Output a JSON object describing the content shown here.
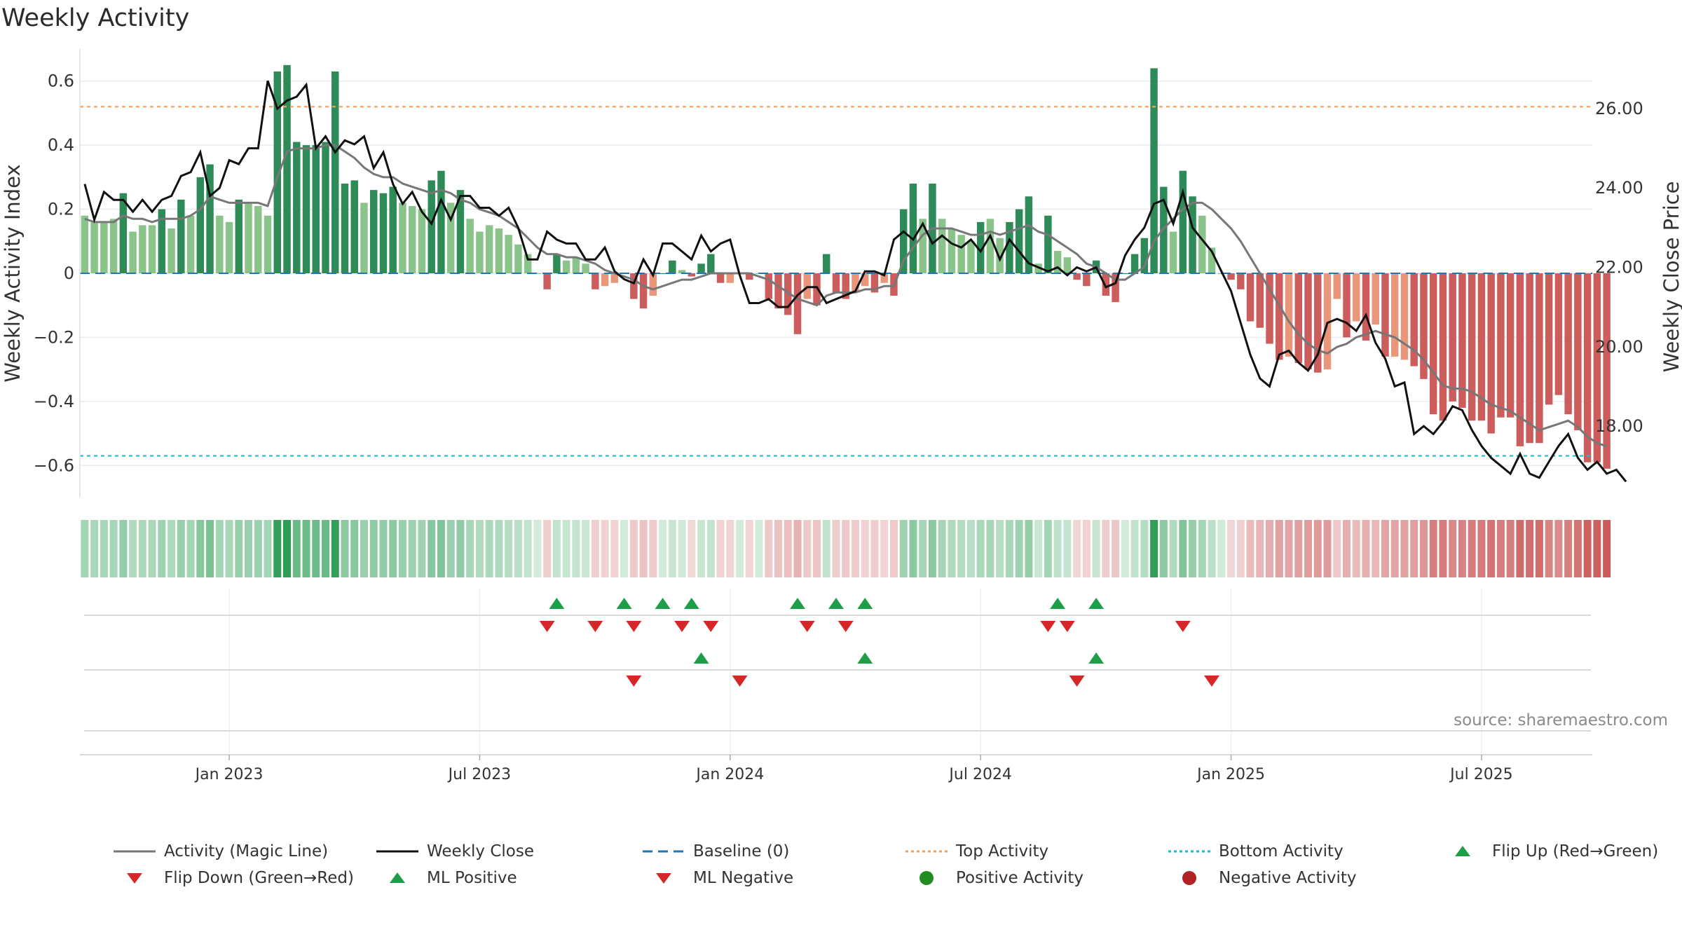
{
  "title": "Weekly Activity",
  "source": "source: sharemaestro.com",
  "colors": {
    "strong_pos": "#2e8b57",
    "light_pos": "#8bc48a",
    "strong_neg": "#cd5c5c",
    "light_neg": "#e9967a",
    "magic_line": "#777777",
    "close_line": "#111111",
    "baseline": "#1f77b4",
    "top": "#f4a261",
    "bottom": "#17becf",
    "flip_up": "#1f9e4a",
    "flip_down": "#d62728"
  },
  "chart_data": {
    "type": "bar",
    "title": "Weekly Activity",
    "ylabel": "Weekly Activity Index",
    "y2label": "Weekly Close Price",
    "ylim": [
      -0.7,
      0.7
    ],
    "y2lim": [
      16.2,
      27.5
    ],
    "yticks": [
      {
        "v": 0.6,
        "t": "0.6"
      },
      {
        "v": 0.4,
        "t": "0.4"
      },
      {
        "v": 0.2,
        "t": "0.2"
      },
      {
        "v": 0,
        "t": "0"
      },
      {
        "v": -0.2,
        "t": "−0.2"
      },
      {
        "v": -0.4,
        "t": "−0.4"
      },
      {
        "v": -0.6,
        "t": "−0.6"
      }
    ],
    "y2ticks": [
      {
        "v": 26,
        "t": "26.00"
      },
      {
        "v": 24,
        "t": "24.00"
      },
      {
        "v": 22,
        "t": "22.00"
      },
      {
        "v": 20,
        "t": "20.00"
      },
      {
        "v": 18,
        "t": "18.00"
      }
    ],
    "xticks": [
      {
        "i": 15,
        "t": "Jan 2023"
      },
      {
        "i": 41,
        "t": "Jul 2023"
      },
      {
        "i": 67,
        "t": "Jan 2024"
      },
      {
        "i": 93,
        "t": "Jul 2024"
      },
      {
        "i": 119,
        "t": "Jan 2025"
      },
      {
        "i": 145,
        "t": "Jul 2025"
      }
    ],
    "top_activity": 0.52,
    "bottom_activity": -0.57,
    "weeks": 157,
    "activity": [
      0.18,
      0.16,
      0.16,
      0.17,
      0.25,
      0.13,
      0.15,
      0.15,
      0.2,
      0.14,
      0.23,
      0.18,
      0.3,
      0.34,
      0.18,
      0.16,
      0.23,
      0.22,
      0.21,
      0.18,
      0.63,
      0.65,
      0.41,
      0.4,
      0.4,
      0.41,
      0.63,
      0.28,
      0.29,
      0.22,
      0.26,
      0.25,
      0.27,
      0.22,
      0.21,
      0.2,
      0.29,
      0.32,
      0.22,
      0.26,
      0.17,
      0.13,
      0.15,
      0.14,
      0.12,
      0.09,
      0.06,
      0.0,
      -0.05,
      0.06,
      0.04,
      0.05,
      0.03,
      -0.05,
      -0.04,
      -0.03,
      0.0,
      -0.08,
      -0.11,
      -0.07,
      0.0,
      0.04,
      0.01,
      -0.01,
      0.03,
      0.06,
      -0.03,
      -0.03,
      0.0,
      -0.02,
      0.0,
      -0.08,
      -0.11,
      -0.13,
      -0.19,
      -0.08,
      -0.1,
      0.06,
      -0.06,
      -0.08,
      -0.06,
      -0.04,
      -0.06,
      -0.03,
      -0.07,
      0.2,
      0.28,
      0.17,
      0.28,
      0.17,
      0.14,
      0.12,
      0.1,
      0.16,
      0.17,
      0.11,
      0.16,
      0.2,
      0.24,
      0.03,
      0.18,
      0.07,
      0.05,
      -0.02,
      -0.04,
      0.04,
      -0.07,
      -0.09,
      0.0,
      0.06,
      0.11,
      0.64,
      0.27,
      0.13,
      0.32,
      0.24,
      0.18,
      0.08,
      0.0,
      -0.02,
      -0.05,
      -0.15,
      -0.17,
      -0.22,
      -0.27,
      -0.26,
      -0.28,
      -0.3,
      -0.31,
      -0.3,
      -0.08,
      -0.2,
      -0.15,
      -0.21,
      -0.16,
      -0.26,
      -0.26,
      -0.27,
      -0.29,
      -0.33,
      -0.44,
      -0.46,
      -0.4,
      -0.42,
      -0.46,
      -0.46,
      -0.5,
      -0.45,
      -0.45,
      -0.54,
      -0.53,
      -0.53,
      -0.41,
      -0.38,
      -0.44,
      -0.49,
      -0.59,
      -0.59,
      -0.61
    ],
    "magic_line": [
      0.17,
      0.16,
      0.16,
      0.16,
      0.18,
      0.17,
      0.17,
      0.16,
      0.17,
      0.17,
      0.17,
      0.18,
      0.2,
      0.24,
      0.23,
      0.22,
      0.22,
      0.22,
      0.22,
      0.21,
      0.3,
      0.38,
      0.39,
      0.39,
      0.39,
      0.4,
      0.4,
      0.38,
      0.36,
      0.33,
      0.31,
      0.3,
      0.3,
      0.28,
      0.27,
      0.26,
      0.25,
      0.26,
      0.25,
      0.23,
      0.22,
      0.2,
      0.19,
      0.18,
      0.16,
      0.14,
      0.11,
      0.08,
      0.06,
      0.06,
      0.05,
      0.05,
      0.04,
      0.03,
      0.01,
      0.0,
      -0.01,
      -0.02,
      -0.04,
      -0.05,
      -0.04,
      -0.03,
      -0.02,
      -0.02,
      -0.01,
      0.0,
      0.0,
      0.0,
      0.0,
      0.0,
      -0.01,
      -0.02,
      -0.04,
      -0.06,
      -0.08,
      -0.09,
      -0.1,
      -0.07,
      -0.06,
      -0.06,
      -0.06,
      -0.05,
      -0.05,
      -0.04,
      -0.04,
      0.04,
      0.08,
      0.12,
      0.14,
      0.14,
      0.14,
      0.13,
      0.12,
      0.12,
      0.13,
      0.12,
      0.13,
      0.14,
      0.15,
      0.13,
      0.12,
      0.1,
      0.08,
      0.06,
      0.03,
      0.02,
      0.0,
      -0.02,
      -0.02,
      0.0,
      0.02,
      0.1,
      0.14,
      0.17,
      0.2,
      0.22,
      0.22,
      0.2,
      0.17,
      0.14,
      0.1,
      0.05,
      0.0,
      -0.05,
      -0.1,
      -0.15,
      -0.19,
      -0.22,
      -0.24,
      -0.25,
      -0.23,
      -0.22,
      -0.2,
      -0.19,
      -0.18,
      -0.19,
      -0.2,
      -0.22,
      -0.24,
      -0.27,
      -0.31,
      -0.35,
      -0.36,
      -0.36,
      -0.37,
      -0.39,
      -0.41,
      -0.42,
      -0.43,
      -0.45,
      -0.47,
      -0.49,
      -0.48,
      -0.47,
      -0.46,
      -0.48,
      -0.51,
      -0.53,
      -0.54
    ],
    "close": [
      24.1,
      23.2,
      23.9,
      23.7,
      23.7,
      23.4,
      23.7,
      23.4,
      23.7,
      23.8,
      24.3,
      24.4,
      24.9,
      23.8,
      24.0,
      24.7,
      24.6,
      25.0,
      25.0,
      26.7,
      26.0,
      26.2,
      26.3,
      26.6,
      25.0,
      25.3,
      24.9,
      25.2,
      25.1,
      25.3,
      24.5,
      24.9,
      24.1,
      23.6,
      23.9,
      23.4,
      23.1,
      23.7,
      23.2,
      23.8,
      23.8,
      23.5,
      23.5,
      23.3,
      23.5,
      23.0,
      22.2,
      22.2,
      22.9,
      22.7,
      22.6,
      22.6,
      22.2,
      22.2,
      22.5,
      21.9,
      21.7,
      21.6,
      22.2,
      21.8,
      22.6,
      22.6,
      22.4,
      22.2,
      22.8,
      22.4,
      22.6,
      22.7,
      21.8,
      21.1,
      21.1,
      21.2,
      21.0,
      21.0,
      21.3,
      21.5,
      21.5,
      21.1,
      21.2,
      21.3,
      21.4,
      21.9,
      21.9,
      21.8,
      22.7,
      22.9,
      22.7,
      23.1,
      22.6,
      22.8,
      22.6,
      22.5,
      22.7,
      22.4,
      22.8,
      22.2,
      22.7,
      22.4,
      22.1,
      22.0,
      21.9,
      22.0,
      21.8,
      22.0,
      21.9,
      22.0,
      21.5,
      21.6,
      22.3,
      22.7,
      23.0,
      23.6,
      23.7,
      23.1,
      23.9,
      23.0,
      22.7,
      22.4,
      21.9,
      21.4,
      20.6,
      19.8,
      19.2,
      19.0,
      19.8,
      19.9,
      19.6,
      19.4,
      19.8,
      20.6,
      20.7,
      20.6,
      20.4,
      20.8,
      20.1,
      19.7,
      19.0,
      19.1,
      17.8,
      18.0,
      17.8,
      18.1,
      18.5,
      18.4,
      17.9,
      17.5,
      17.2,
      17.0,
      16.8,
      17.3,
      16.8,
      16.7,
      17.1,
      17.5,
      17.8,
      17.2,
      16.9,
      17.1,
      16.8,
      16.9,
      16.6
    ]
  },
  "strip": {
    "rows": [
      {
        "name": "flip-markers-row",
        "up": [
          49,
          56,
          60,
          63,
          74,
          78,
          81,
          101,
          105
        ],
        "down": [
          48,
          53,
          57,
          62,
          65,
          75,
          79,
          100,
          102,
          114
        ]
      },
      {
        "name": "ml-markers-row",
        "up": [
          64,
          81,
          105
        ],
        "down": [
          57,
          68,
          103,
          117
        ]
      },
      {
        "name": "activity-dots-row",
        "up": [],
        "down": []
      }
    ]
  },
  "legend": [
    {
      "name": "legend-magic-line",
      "label": "Activity (Magic Line)",
      "sym": "line",
      "color": "#777777",
      "dash": ""
    },
    {
      "name": "legend-weekly-close",
      "label": "Weekly Close",
      "sym": "line",
      "color": "#111111",
      "dash": ""
    },
    {
      "name": "legend-baseline",
      "label": "Baseline (0)",
      "sym": "line",
      "color": "#1f77b4",
      "dash": "14,8"
    },
    {
      "name": "legend-top-activity",
      "label": "Top Activity",
      "sym": "line",
      "color": "#f4a261",
      "dash": "4,4"
    },
    {
      "name": "legend-bottom-activity",
      "label": "Bottom Activity",
      "sym": "line",
      "color": "#17becf",
      "dash": "4,4"
    },
    {
      "name": "legend-flip-up",
      "label": "Flip Up (Red→Green)",
      "sym": "up",
      "color": "#1f9e4a"
    },
    {
      "name": "legend-flip-down",
      "label": "Flip Down (Green→Red)",
      "sym": "down",
      "color": "#d62728"
    },
    {
      "name": "legend-ml-positive",
      "label": "ML Positive",
      "sym": "up",
      "color": "#1f9e4a"
    },
    {
      "name": "legend-ml-negative",
      "label": "ML Negative",
      "sym": "down",
      "color": "#d62728"
    },
    {
      "name": "legend-positive-activity",
      "label": "Positive Activity",
      "sym": "dot",
      "color": "#228b22"
    },
    {
      "name": "legend-negative-activity",
      "label": "Negative Activity",
      "sym": "dot",
      "color": "#b22222"
    }
  ]
}
